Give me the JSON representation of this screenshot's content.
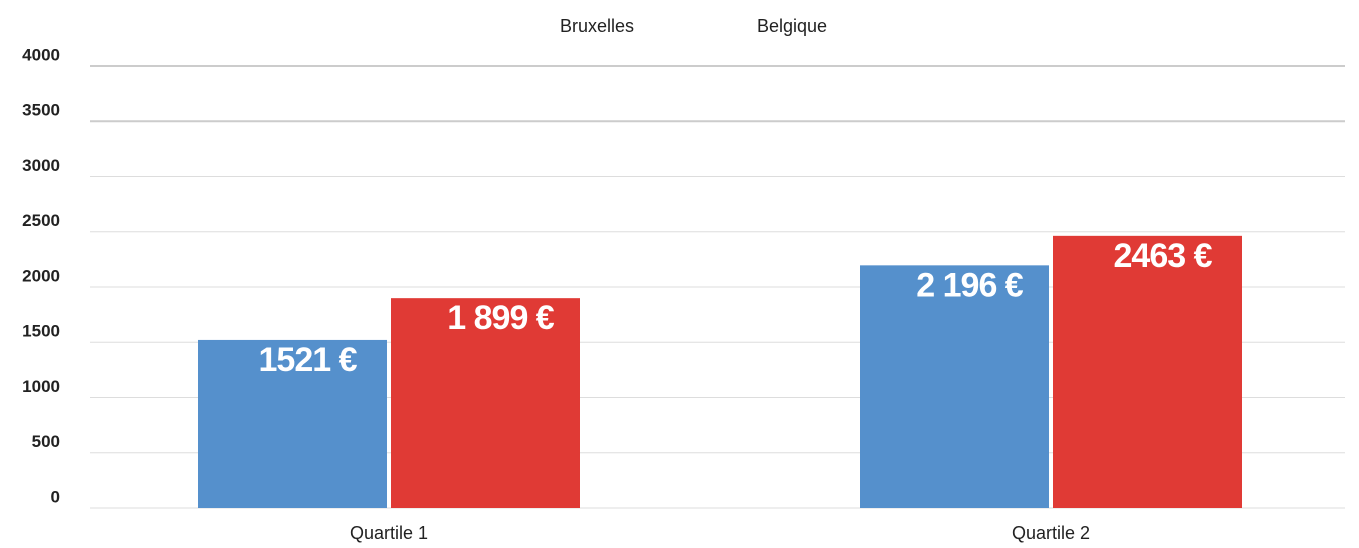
{
  "chart_data": {
    "type": "bar",
    "categories": [
      "Quartile 1",
      "Quartile 2"
    ],
    "series": [
      {
        "name": "Bruxelles",
        "color": "#5590cc",
        "values": [
          1521,
          2196
        ],
        "value_labels": [
          "1521 €",
          "2 196 €"
        ]
      },
      {
        "name": "Belgique",
        "color": "#e03a35",
        "values": [
          1899,
          2463
        ],
        "value_labels": [
          "1 899 €",
          "2463 €"
        ]
      }
    ],
    "ylim": [
      0,
      4000
    ],
    "yticks": [
      0,
      500,
      1000,
      1500,
      2000,
      2500,
      3000,
      3500,
      4000
    ],
    "grid": true,
    "legend": "top"
  }
}
